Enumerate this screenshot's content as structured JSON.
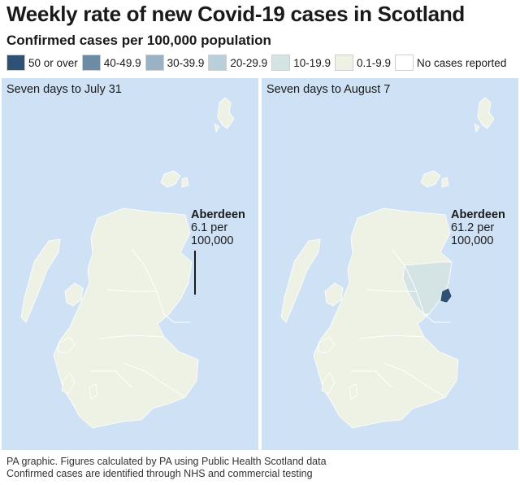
{
  "title": "Weekly rate of new Covid-19 cases in Scotland",
  "subtitle": "Confirmed cases per 100,000 population",
  "legend": [
    {
      "label": "50 or over",
      "color": "#2f5175"
    },
    {
      "label": "40-49.9",
      "color": "#6d8ba4"
    },
    {
      "label": "30-39.9",
      "color": "#9bb2c5"
    },
    {
      "label": "20-29.9",
      "color": "#b9cfdc"
    },
    {
      "label": "10-19.9",
      "color": "#d4e3e4"
    },
    {
      "label": "0.1-9.9",
      "color": "#eef2e4"
    },
    {
      "label": "No cases reported",
      "color": "#ffffff"
    }
  ],
  "colors": {
    "sea": "#cfe1f5",
    "land": "#eef2e4",
    "border": "#ffffff",
    "aberdeenshire_aug7": "#d4e3e4",
    "aberdeen_city_aug7": "#2f5175"
  },
  "panels": {
    "left": {
      "caption": "Seven days to July 31",
      "callout_city": "Aberdeen",
      "callout_line1": "6.1 per",
      "callout_line2": "100,000"
    },
    "right": {
      "caption": "Seven days to August 7",
      "callout_city": "Aberdeen",
      "callout_line1": "61.2 per",
      "callout_line2": "100,000"
    }
  },
  "footer": {
    "line1": "PA graphic. Figures calculated by PA using Public Health Scotland data",
    "line2": "Confirmed cases are identified through NHS and commercial testing"
  }
}
